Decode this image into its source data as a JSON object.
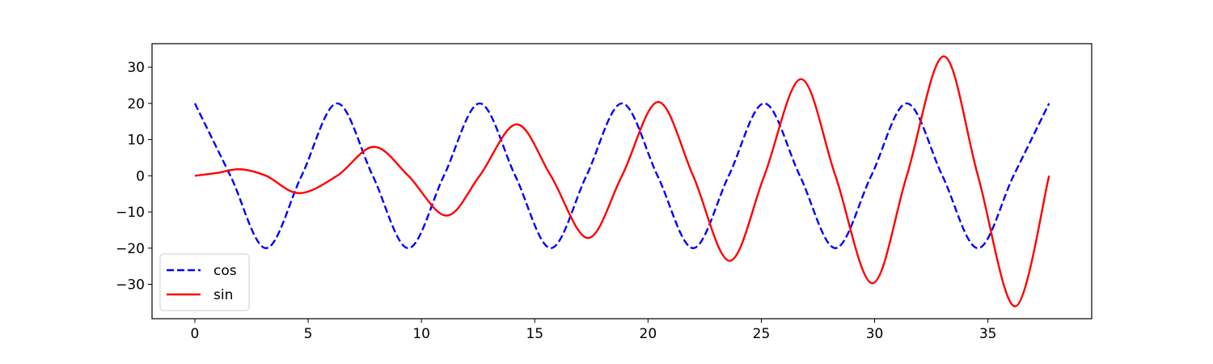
{
  "chart_data": {
    "type": "line",
    "title": "",
    "xlabel": "",
    "ylabel": "",
    "xlim": [
      -1.89,
      39.58
    ],
    "ylim": [
      -39.5,
      36.5
    ],
    "x_ticks": [
      0,
      5,
      10,
      15,
      20,
      25,
      30,
      35
    ],
    "y_ticks": [
      -30,
      -20,
      -10,
      0,
      10,
      20,
      30
    ],
    "x_tick_labels": [
      "0",
      "5",
      "10",
      "15",
      "20",
      "25",
      "30",
      "35"
    ],
    "y_tick_labels": [
      "−30",
      "−20",
      "−10",
      "0",
      "10",
      "20",
      "30"
    ],
    "grid": false,
    "legend": {
      "placement": "lower-left",
      "entries": [
        {
          "name": "cos",
          "color": "#0000ff",
          "style": "dashed"
        },
        {
          "name": "sin",
          "color": "#ff0000",
          "style": "solid"
        }
      ]
    },
    "series": [
      {
        "name": "cos",
        "color": "#0000ff",
        "style": "dashed",
        "x": [
          0,
          1.57,
          3.14,
          4.71,
          6.28,
          7.85,
          9.42,
          10.99,
          12.57,
          14.14,
          15.71,
          17.28,
          18.85,
          20.42,
          21.99,
          23.56,
          25.13,
          26.7,
          28.27,
          29.85,
          31.42,
          32.99,
          34.56,
          36.13,
          37.7
        ],
        "y": [
          20,
          0,
          -20,
          0,
          20,
          0,
          -20,
          0,
          20,
          0,
          -20,
          0,
          20,
          0,
          -20,
          0,
          20,
          0,
          -20,
          0,
          20,
          0,
          -20,
          0,
          20
        ]
      },
      {
        "name": "sin",
        "color": "#ff0000",
        "style": "solid",
        "x": [
          0,
          1.0,
          2.0,
          3.14,
          4.6,
          6.28,
          7.9,
          9.42,
          11.1,
          12.57,
          14.2,
          15.71,
          17.35,
          18.85,
          20.45,
          21.99,
          23.6,
          25.13,
          26.75,
          28.27,
          29.9,
          31.42,
          33.05,
          34.56,
          36.2,
          37.7
        ],
        "y": [
          0,
          0.8,
          1.8,
          0,
          -4.8,
          0,
          8.0,
          0,
          -11.0,
          0,
          14.2,
          0,
          -17.2,
          0,
          20.4,
          0,
          -23.5,
          0,
          26.7,
          0,
          -29.7,
          0,
          33.0,
          0,
          -36.1,
          0
        ]
      }
    ]
  }
}
